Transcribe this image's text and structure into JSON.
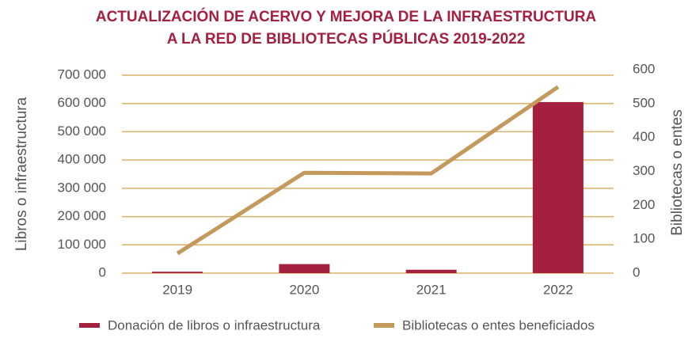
{
  "chart_data": {
    "type": "bar",
    "title": "ACTUALIZACIÓN DE ACERVO Y MEJORA DE LA INFRAESTRUCTURA",
    "subtitle": "A LA RED DE BIBLIOTECAS PÚBLICAS 2019-2022",
    "ylabel": "Libros o infraestructura",
    "y2label": "Bibliotecas o entes",
    "categories": [
      "2019",
      "2020",
      "2021",
      "2022"
    ],
    "series": [
      {
        "name": "Donación de libros o infraestructura",
        "type": "bar",
        "color": "#a3203f",
        "values": [
          5000,
          32000,
          12000,
          605000
        ]
      },
      {
        "name": "Bibliotecas o entes beneficiados",
        "type": "line",
        "axis": "y2",
        "color": "#c49a5c",
        "values": [
          58,
          296,
          294,
          549
        ]
      }
    ],
    "ylim": [
      0,
      700000
    ],
    "yticks": [
      {
        "value": 0,
        "label": "0"
      },
      {
        "value": 100000,
        "label": "100 000"
      },
      {
        "value": 200000,
        "label": "200 000"
      },
      {
        "value": 300000,
        "label": "300 000"
      },
      {
        "value": 400000,
        "label": "400 000"
      },
      {
        "value": 500000,
        "label": "500 000"
      },
      {
        "value": 600000,
        "label": "600 000"
      },
      {
        "value": 700000,
        "label": "700 000"
      }
    ],
    "y2lim": [
      0,
      600
    ],
    "y2ticks": [
      0,
      100,
      200,
      300,
      400,
      500,
      600
    ],
    "grid": true,
    "legend": "bottom"
  }
}
